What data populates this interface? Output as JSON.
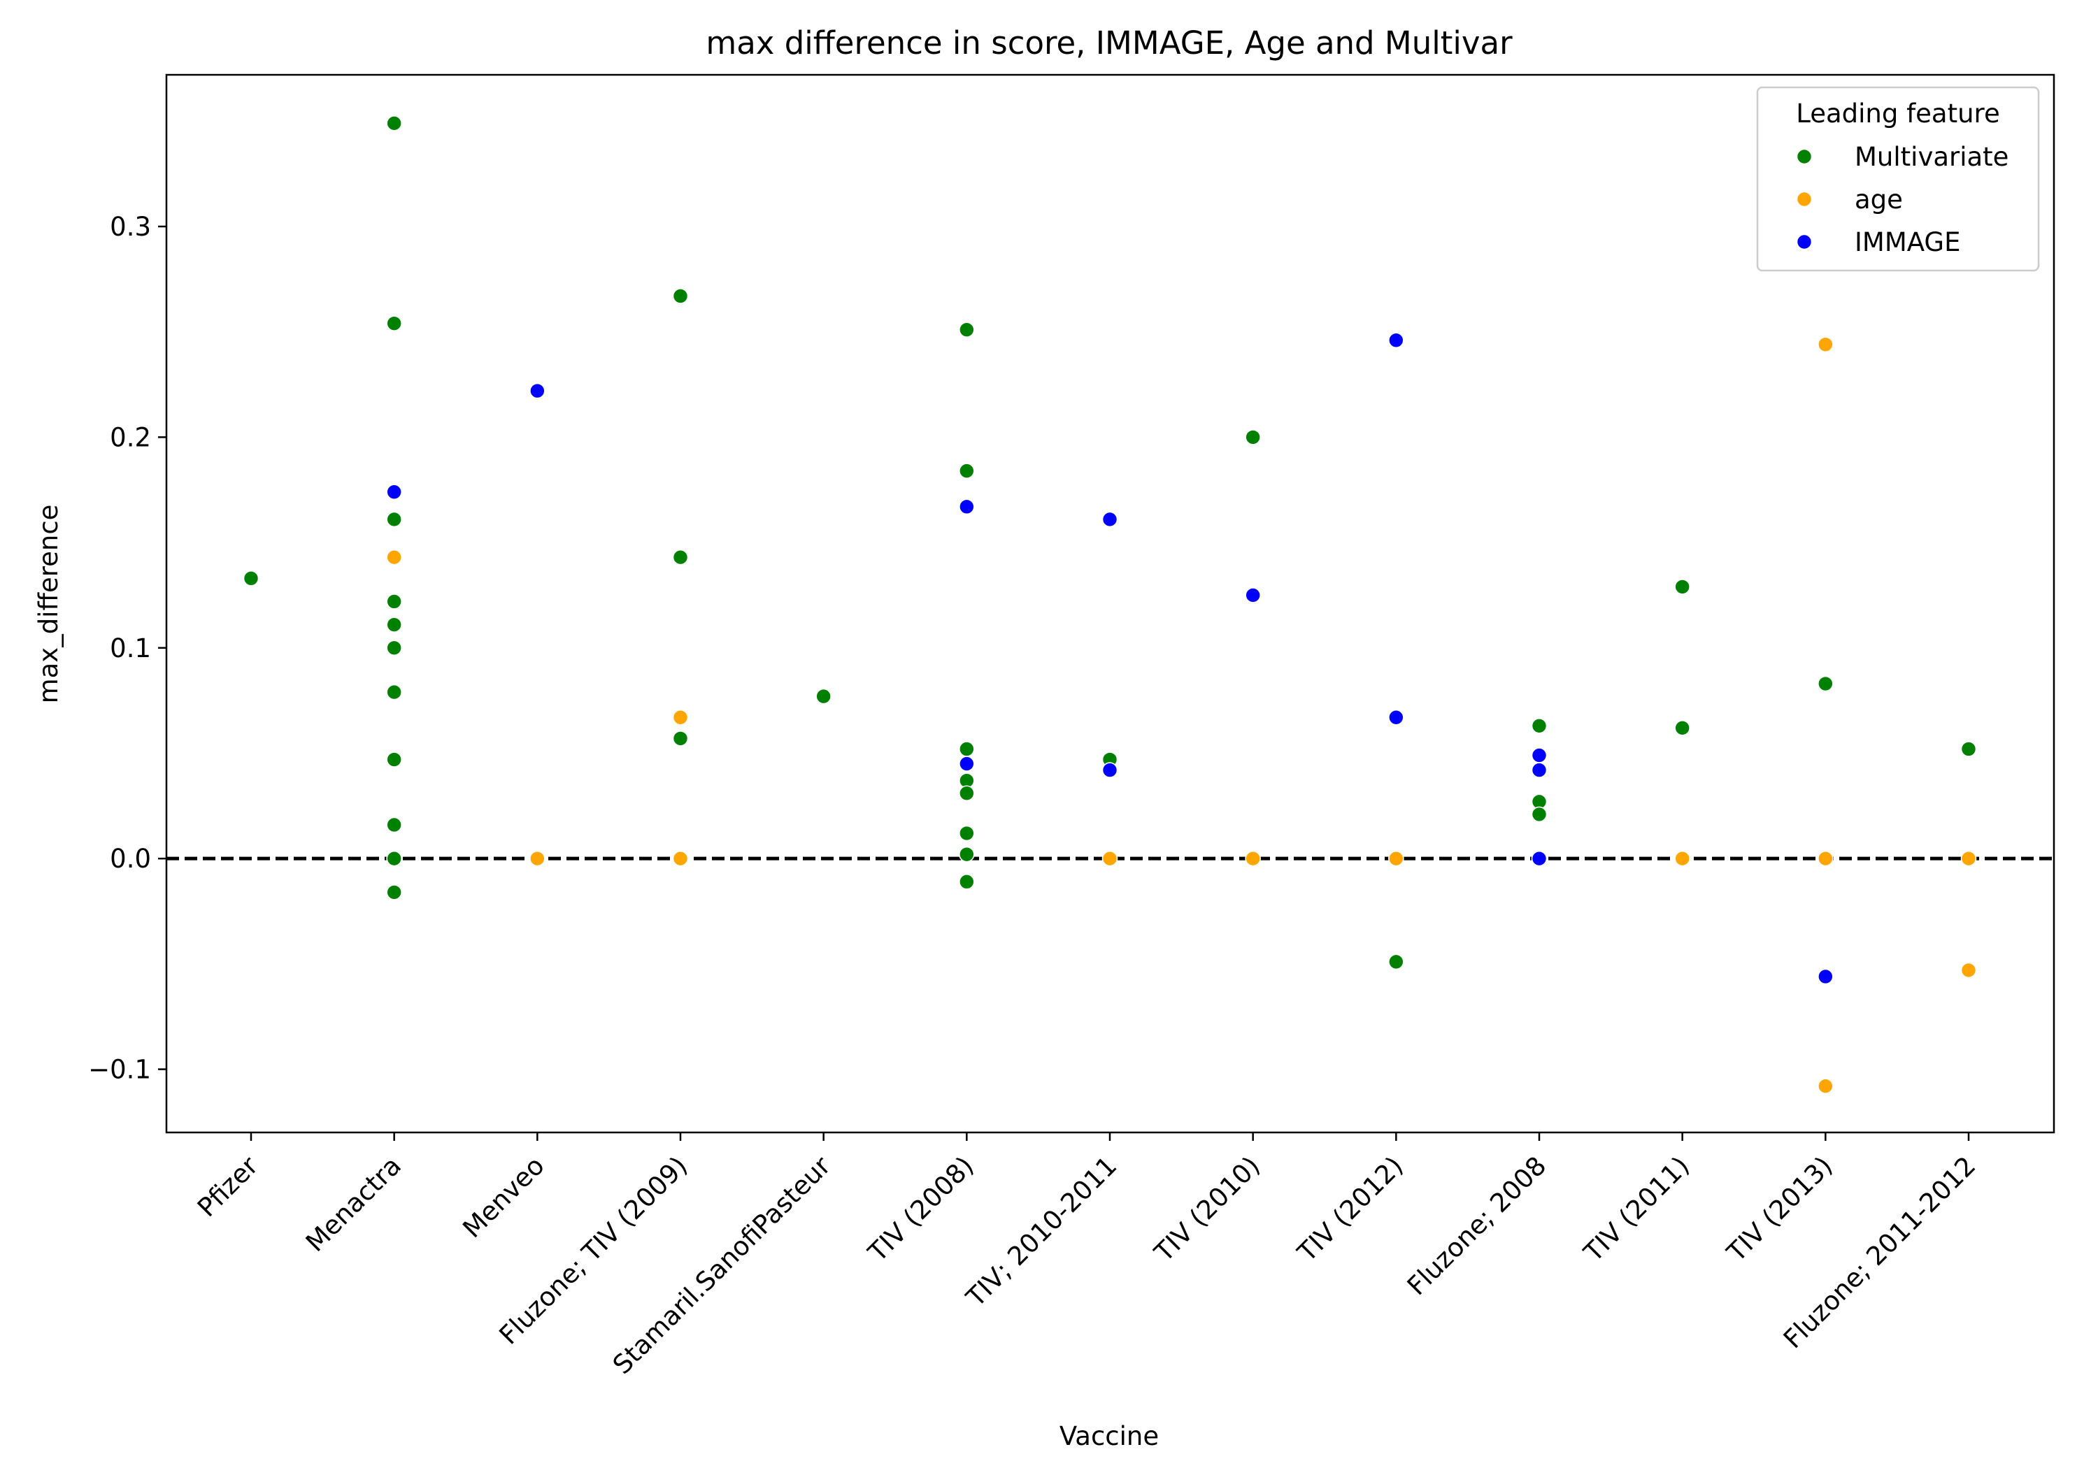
{
  "chart_data": {
    "type": "scatter",
    "title": "max difference in score, IMMAGE, Age and Multivar",
    "xlabel": "Vaccine",
    "ylabel": "max_difference",
    "ylim": [
      -0.13,
      0.372
    ],
    "yticks": [
      -0.1,
      0.0,
      0.1,
      0.2,
      0.3
    ],
    "ytick_labels": [
      "−0.1",
      "0.0",
      "0.1",
      "0.2",
      "0.3"
    ],
    "categories": [
      "Pfizer",
      "Menactra",
      "Menveo",
      "Fluzone; TIV (2009)",
      "Stamaril.SanofiPasteur",
      "TIV (2008)",
      "TIV; 2010-2011",
      "TIV (2010)",
      "TIV (2012)",
      "Fluzone; 2008",
      "TIV (2011)",
      "TIV (2013)",
      "Fluzone; 2011-2012"
    ],
    "reference_line": {
      "y": 0.0,
      "style": "dashed",
      "color": "#000000"
    },
    "grid": false,
    "legend": {
      "title": "Leading feature",
      "placement": "top-right"
    },
    "series": [
      {
        "name": "Multivariate",
        "color": "#008000",
        "points": [
          {
            "x": "Pfizer",
            "y": 0.133
          },
          {
            "x": "Menactra",
            "y": 0.349
          },
          {
            "x": "Menactra",
            "y": 0.254
          },
          {
            "x": "Menactra",
            "y": 0.161
          },
          {
            "x": "Menactra",
            "y": 0.122
          },
          {
            "x": "Menactra",
            "y": 0.111
          },
          {
            "x": "Menactra",
            "y": 0.1
          },
          {
            "x": "Menactra",
            "y": 0.079
          },
          {
            "x": "Menactra",
            "y": 0.047
          },
          {
            "x": "Menactra",
            "y": 0.016
          },
          {
            "x": "Menactra",
            "y": 0.0
          },
          {
            "x": "Menactra",
            "y": -0.016
          },
          {
            "x": "Fluzone; TIV (2009)",
            "y": 0.267
          },
          {
            "x": "Fluzone; TIV (2009)",
            "y": 0.143
          },
          {
            "x": "Fluzone; TIV (2009)",
            "y": 0.057
          },
          {
            "x": "Stamaril.SanofiPasteur",
            "y": 0.077
          },
          {
            "x": "TIV (2008)",
            "y": 0.251
          },
          {
            "x": "TIV (2008)",
            "y": 0.184
          },
          {
            "x": "TIV (2008)",
            "y": 0.052
          },
          {
            "x": "TIV (2008)",
            "y": 0.037
          },
          {
            "x": "TIV (2008)",
            "y": 0.031
          },
          {
            "x": "TIV (2008)",
            "y": 0.012
          },
          {
            "x": "TIV (2008)",
            "y": 0.002
          },
          {
            "x": "TIV (2008)",
            "y": -0.011
          },
          {
            "x": "TIV; 2010-2011",
            "y": 0.047
          },
          {
            "x": "TIV (2010)",
            "y": 0.2
          },
          {
            "x": "TIV (2012)",
            "y": -0.049
          },
          {
            "x": "Fluzone; 2008",
            "y": 0.063
          },
          {
            "x": "Fluzone; 2008",
            "y": 0.027
          },
          {
            "x": "Fluzone; 2008",
            "y": 0.021
          },
          {
            "x": "TIV (2011)",
            "y": 0.129
          },
          {
            "x": "TIV (2011)",
            "y": 0.062
          },
          {
            "x": "TIV (2013)",
            "y": 0.083
          },
          {
            "x": "Fluzone; 2011-2012",
            "y": 0.052
          }
        ]
      },
      {
        "name": "age",
        "color": "#FFA500",
        "points": [
          {
            "x": "Menactra",
            "y": 0.143
          },
          {
            "x": "Menveo",
            "y": 0.0
          },
          {
            "x": "Fluzone; TIV (2009)",
            "y": 0.067
          },
          {
            "x": "Fluzone; TIV (2009)",
            "y": 0.0
          },
          {
            "x": "TIV; 2010-2011",
            "y": 0.0
          },
          {
            "x": "TIV (2010)",
            "y": 0.0
          },
          {
            "x": "TIV (2012)",
            "y": 0.0
          },
          {
            "x": "TIV (2011)",
            "y": 0.0
          },
          {
            "x": "TIV (2013)",
            "y": 0.244
          },
          {
            "x": "TIV (2013)",
            "y": 0.0
          },
          {
            "x": "TIV (2013)",
            "y": -0.108
          },
          {
            "x": "Fluzone; 2011-2012",
            "y": 0.0
          },
          {
            "x": "Fluzone; 2011-2012",
            "y": -0.053
          }
        ]
      },
      {
        "name": "IMMAGE",
        "color": "#0000FF",
        "points": [
          {
            "x": "Menactra",
            "y": 0.174
          },
          {
            "x": "Menveo",
            "y": 0.222
          },
          {
            "x": "TIV (2008)",
            "y": 0.167
          },
          {
            "x": "TIV (2008)",
            "y": 0.045
          },
          {
            "x": "TIV; 2010-2011",
            "y": 0.161
          },
          {
            "x": "TIV; 2010-2011",
            "y": 0.042
          },
          {
            "x": "TIV (2010)",
            "y": 0.125
          },
          {
            "x": "TIV (2012)",
            "y": 0.246
          },
          {
            "x": "TIV (2012)",
            "y": 0.067
          },
          {
            "x": "Fluzone; 2008",
            "y": 0.049
          },
          {
            "x": "Fluzone; 2008",
            "y": 0.042
          },
          {
            "x": "Fluzone; 2008",
            "y": 0.0
          },
          {
            "x": "TIV (2013)",
            "y": -0.056
          }
        ]
      }
    ]
  }
}
